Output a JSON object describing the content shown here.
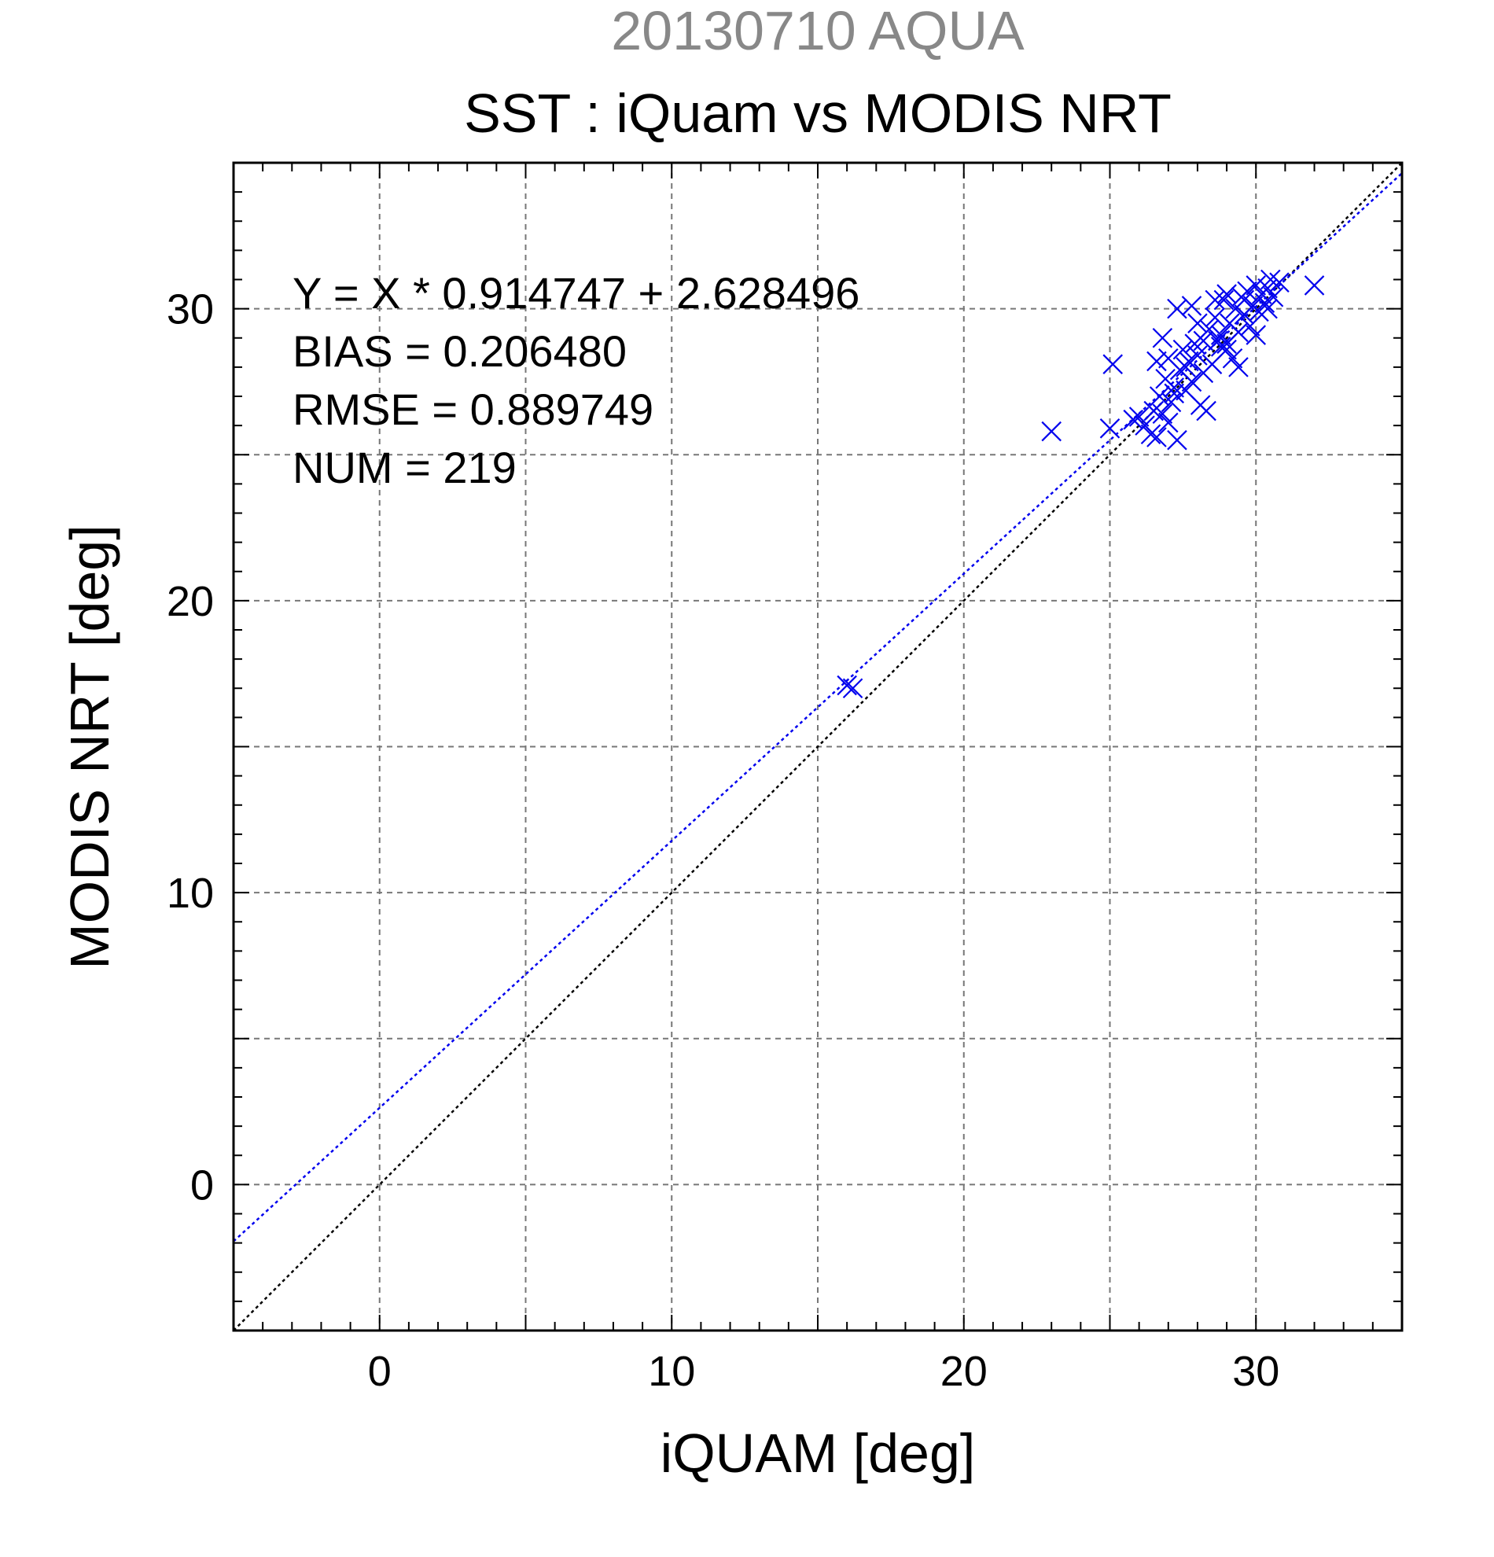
{
  "chart_data": {
    "type": "scatter",
    "title": "SST : iQuam vs MODIS NRT",
    "date_title": "20130710 AQUA",
    "xlabel": "iQUAM [deg]",
    "ylabel": "MODIS NRT [deg]",
    "xlim": [
      -5,
      35
    ],
    "ylim": [
      -5,
      35
    ],
    "x_ticks": [
      0,
      10,
      20,
      30
    ],
    "y_ticks": [
      0,
      10,
      20,
      30
    ],
    "minor_tick_step": 1,
    "grid": true,
    "annotations": [
      "Y = X * 0.914747 + 2.628496",
      "BIAS = 0.206480",
      "RMSE = 0.889749",
      "NUM = 219"
    ],
    "regression": {
      "slope": 0.914747,
      "intercept": 2.628496
    },
    "colors": {
      "points": "#0000ee",
      "fit_line": "#0000ee",
      "identity_line": "#000000",
      "date_title": "#888888",
      "grid": "#777777"
    },
    "points": [
      [
        16.0,
        17.1
      ],
      [
        16.2,
        17.0
      ],
      [
        23.0,
        25.8
      ],
      [
        25.0,
        25.9
      ],
      [
        25.1,
        28.1
      ],
      [
        25.8,
        26.2
      ],
      [
        26.0,
        26.3
      ],
      [
        26.2,
        26.0
      ],
      [
        26.4,
        25.7
      ],
      [
        26.5,
        26.5
      ],
      [
        26.6,
        25.6
      ],
      [
        26.7,
        27.0
      ],
      [
        26.8,
        26.4
      ],
      [
        26.9,
        27.6
      ],
      [
        27.0,
        26.1
      ],
      [
        27.1,
        26.8
      ],
      [
        27.2,
        27.3
      ],
      [
        27.3,
        25.5
      ],
      [
        27.4,
        27.9
      ],
      [
        27.5,
        28.6
      ],
      [
        27.6,
        27.2
      ],
      [
        27.7,
        28.2
      ],
      [
        27.8,
        27.5
      ],
      [
        27.9,
        28.8
      ],
      [
        28.0,
        28.4
      ],
      [
        28.1,
        26.7
      ],
      [
        28.2,
        27.8
      ],
      [
        28.3,
        26.5
      ],
      [
        28.4,
        29.3
      ],
      [
        28.5,
        28.1
      ],
      [
        28.6,
        29.7
      ],
      [
        28.7,
        28.9
      ],
      [
        28.8,
        29.1
      ],
      [
        28.9,
        30.3
      ],
      [
        29.0,
        28.6
      ],
      [
        29.1,
        29.5
      ],
      [
        29.2,
        28.3
      ],
      [
        29.3,
        30.0
      ],
      [
        29.4,
        29.2
      ],
      [
        29.5,
        30.4
      ],
      [
        29.6,
        29.8
      ],
      [
        29.7,
        30.6
      ],
      [
        29.8,
        29.4
      ],
      [
        29.9,
        30.1
      ],
      [
        30.0,
        30.8
      ],
      [
        30.1,
        29.9
      ],
      [
        30.2,
        30.5
      ],
      [
        30.3,
        30.2
      ],
      [
        30.4,
        30.7
      ],
      [
        30.5,
        31.0
      ],
      [
        30.6,
        30.4
      ],
      [
        30.8,
        30.9
      ],
      [
        27.3,
        30.0
      ],
      [
        27.8,
        30.1
      ],
      [
        26.8,
        29.0
      ],
      [
        26.6,
        28.2
      ],
      [
        27.0,
        28.3
      ],
      [
        28.0,
        29.5
      ],
      [
        28.6,
        30.3
      ],
      [
        29.0,
        30.5
      ],
      [
        30.0,
        29.1
      ],
      [
        29.4,
        28.0
      ],
      [
        29.0,
        28.8
      ],
      [
        28.8,
        28.7
      ],
      [
        32.0,
        30.8
      ],
      [
        27.2,
        27.1
      ],
      [
        27.6,
        28.0
      ],
      [
        28.2,
        28.9
      ],
      [
        29.6,
        30.3
      ],
      [
        30.4,
        30.0
      ]
    ]
  }
}
